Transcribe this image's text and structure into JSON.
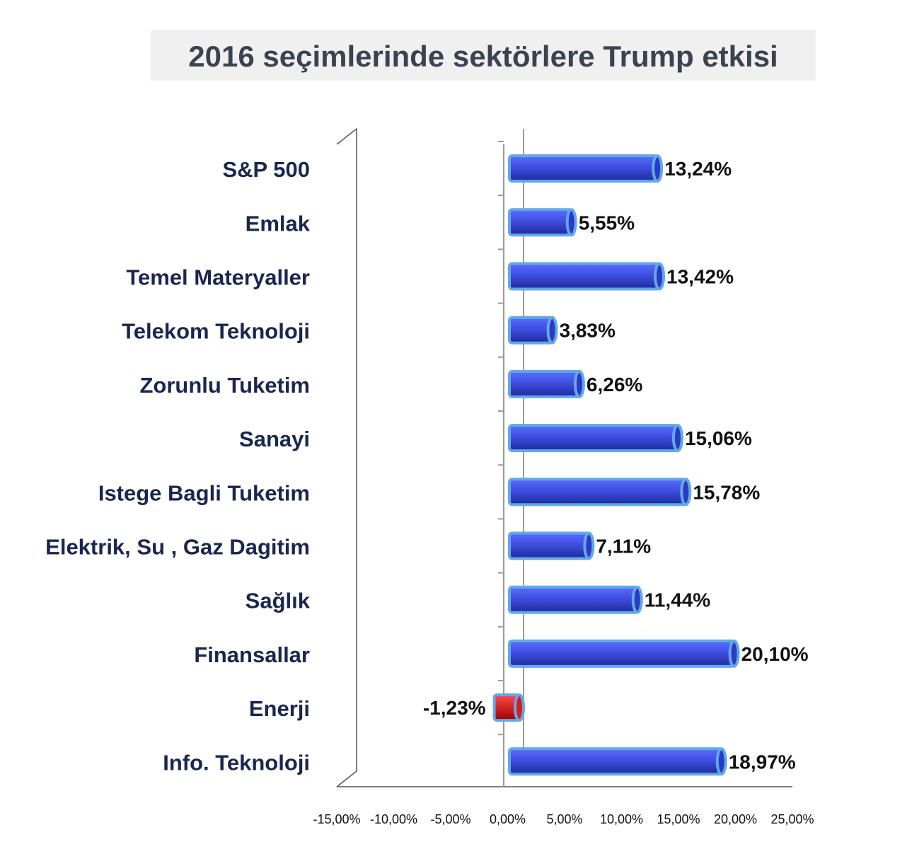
{
  "chart_data": {
    "type": "bar",
    "orientation": "horizontal",
    "title": "2016 seçimlerinde sektörlere Trump etkisi",
    "categories": [
      "S&P 500",
      "Emlak",
      "Temel Materyaller",
      "Telekom Teknoloji",
      "Zorunlu Tuketim",
      "Sanayi",
      "Istege Bagli Tuketim",
      "Elektrik, Su , Gaz Dagitim",
      "Sağlık",
      "Finansallar",
      "Enerji",
      "Info. Teknoloji"
    ],
    "values": [
      13.24,
      5.55,
      13.42,
      3.83,
      6.26,
      15.06,
      15.78,
      7.11,
      11.44,
      20.1,
      -1.23,
      18.97
    ],
    "value_labels": [
      "13,24%",
      "5,55%",
      "13,42%",
      "3,83%",
      "6,26%",
      "15,06%",
      "15,78%",
      "7,11%",
      "11,44%",
      "20,10%",
      "-1,23%",
      "18,97%"
    ],
    "xlim": [
      -15,
      25
    ],
    "xticks": [
      -15,
      -10,
      -5,
      0,
      5,
      10,
      15,
      20,
      25
    ],
    "xtick_labels": [
      "-15,00%",
      "-10,00%",
      "-5,00%",
      "0,00%",
      "5,00%",
      "10,00%",
      "15,00%",
      "20,00%",
      "25,00%"
    ],
    "colors": {
      "positive": "#3f4fe0",
      "positive_dark": "#1e2a9c",
      "positive_rim": "#63a8e6",
      "negative": "#d81a1a",
      "negative_rim": "#63a8e6"
    },
    "grid": false,
    "legend": "none"
  }
}
